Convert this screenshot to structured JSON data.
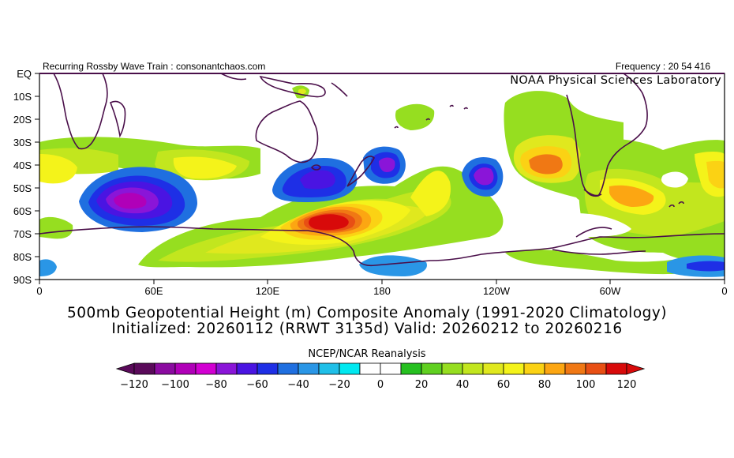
{
  "header": {
    "left": "Recurring Rossby Wave Train : consonantchaos.com",
    "right": "Frequency : 20 54 416",
    "lab": "NOAA Physical Sciences Laboratory"
  },
  "map": {
    "lat_labels": [
      "EQ",
      "10S",
      "20S",
      "30S",
      "40S",
      "50S",
      "60S",
      "70S",
      "80S",
      "90S"
    ],
    "lon_labels": [
      "0",
      "60E",
      "120E",
      "180",
      "120W",
      "60W",
      "0"
    ],
    "colors": {
      "coast": "#4a0f4a",
      "red": "#d10000",
      "yellow": "#f0f000"
    }
  },
  "titles": {
    "line1": "500mb Geopotential Height (m) Composite Anomaly (1991-2020 Climatology)",
    "line2": "Initialized: 20260112 (RRWT 3135d) Valid: 20260212 to 20260216",
    "source": "NCEP/NCAR Reanalysis"
  },
  "colorbar": {
    "labels": [
      "-120",
      "-100",
      "-80",
      "-60",
      "-40",
      "-20",
      "0",
      "20",
      "40",
      "60",
      "80",
      "100",
      "120"
    ],
    "colors": [
      "#5a0a5a",
      "#8b0ba0",
      "#b000b8",
      "#d200d2",
      "#8a15d8",
      "#4a14e2",
      "#1e2fe6",
      "#1f6fe0",
      "#2a96e6",
      "#1fbfe8",
      "#00e8f0",
      "#ffffff",
      "#ffffff",
      "#26c020",
      "#60d020",
      "#96de20",
      "#c2e61e",
      "#e0e81e",
      "#f4f31a",
      "#fbd214",
      "#fca612",
      "#f07814",
      "#e84f14",
      "#d80a0a"
    ]
  }
}
